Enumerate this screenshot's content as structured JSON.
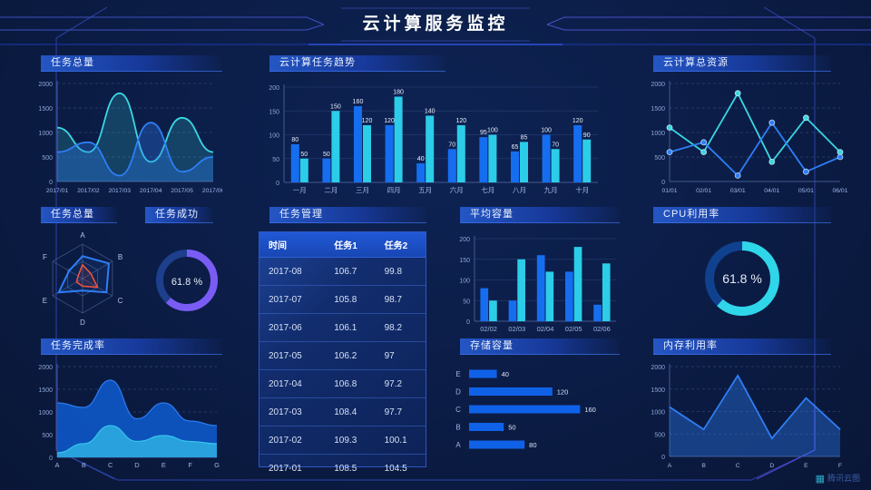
{
  "header": {
    "title": "云计算服务监控"
  },
  "watermark": {
    "label": "腾讯云图"
  },
  "panels": {
    "task_total_top": {
      "title": "任务总量"
    },
    "task_trend": {
      "title": "云计算任务趋势"
    },
    "cloud_resources": {
      "title": "云计算总资源"
    },
    "task_total_radar": {
      "title": "任务总量"
    },
    "task_success": {
      "title": "任务成功"
    },
    "task_manage": {
      "title": "任务管理"
    },
    "avg_capacity": {
      "title": "平均容量"
    },
    "cpu_usage": {
      "title": "CPU利用率"
    },
    "task_completion": {
      "title": "任务完成率"
    },
    "storage": {
      "title": "存储容量"
    },
    "memory_usage": {
      "title": "内存利用率"
    }
  },
  "table": {
    "headers": [
      "时间",
      "任务1",
      "任务2"
    ],
    "rows": [
      [
        "2017-08",
        "106.7",
        "99.8"
      ],
      [
        "2017-07",
        "105.8",
        "98.7"
      ],
      [
        "2017-06",
        "106.1",
        "98.2"
      ],
      [
        "2017-05",
        "106.2",
        "97"
      ],
      [
        "2017-04",
        "106.8",
        "97.2"
      ],
      [
        "2017-03",
        "108.4",
        "97.7"
      ],
      [
        "2017-02",
        "109.3",
        "100.1"
      ],
      [
        "2017-01",
        "108.5",
        "104.5"
      ]
    ]
  },
  "chart_data": [
    {
      "id": "task_total_top",
      "type": "area",
      "smooth": true,
      "grid": "dashed",
      "x": [
        "2017/01",
        "2017/02",
        "2017/03",
        "2017/04",
        "2017/05",
        "2017/06"
      ],
      "ylim": [
        0,
        2000
      ],
      "yticks": [
        0,
        500,
        1000,
        1500,
        2000
      ],
      "series": [
        {
          "name": "cyan",
          "color": "#3ad6e2",
          "fill_opacity": 0.2,
          "values": [
            1100,
            600,
            1800,
            400,
            1300,
            600
          ]
        },
        {
          "name": "blue",
          "color": "#2e7ef5",
          "fill_opacity": 0.32,
          "values": [
            600,
            800,
            120,
            1200,
            200,
            500
          ]
        }
      ]
    },
    {
      "id": "task_trend",
      "type": "bar",
      "value_labels": true,
      "grid": "solid",
      "categories": [
        "一月",
        "二月",
        "三月",
        "四月",
        "五月",
        "六月",
        "七月",
        "八月",
        "九月",
        "十月"
      ],
      "ylim": [
        0,
        200
      ],
      "yticks": [
        0,
        50,
        100,
        150,
        200
      ],
      "series": [
        {
          "name": "任务1",
          "color": "#156ef0",
          "values": [
            80,
            50,
            160,
            120,
            40,
            70,
            95,
            65,
            100,
            120
          ]
        },
        {
          "name": "任务2",
          "color": "#2bcde8",
          "values": [
            50,
            150,
            120,
            180,
            140,
            120,
            100,
            85,
            70,
            90
          ]
        }
      ]
    },
    {
      "id": "cloud_resources",
      "type": "line",
      "markers": true,
      "grid": "dashed",
      "x": [
        "01/01",
        "02/01",
        "03/01",
        "04/01",
        "05/01",
        "06/01"
      ],
      "ylim": [
        0,
        2000
      ],
      "yticks": [
        0,
        500,
        1000,
        1500,
        2000
      ],
      "series": [
        {
          "name": "cyan",
          "color": "#3ad6e2",
          "values": [
            1100,
            600,
            1800,
            400,
            1300,
            600
          ]
        },
        {
          "name": "blue",
          "color": "#2e7ef5",
          "values": [
            600,
            800,
            120,
            1200,
            200,
            500
          ]
        }
      ]
    },
    {
      "id": "task_total_radar",
      "type": "radar",
      "max": 100,
      "axes": [
        "A",
        "B",
        "C",
        "D",
        "E",
        "F"
      ],
      "series": [
        {
          "name": "blue",
          "color": "#2e7ef5",
          "values": [
            65,
            88,
            80,
            35,
            80,
            45
          ]
        },
        {
          "name": "red",
          "color": "#f25540",
          "values": [
            40,
            28,
            50,
            22,
            20,
            15
          ]
        }
      ]
    },
    {
      "id": "task_success",
      "type": "donut",
      "value": 61.8,
      "label": "61.8 %",
      "color": "#7a5cf5",
      "track": "#1d3f8c"
    },
    {
      "id": "avg_capacity",
      "type": "bar",
      "value_labels": false,
      "grid": "solid",
      "categories": [
        "02/02",
        "02/03",
        "02/04",
        "02/05",
        "02/06"
      ],
      "ylim": [
        0,
        200
      ],
      "yticks": [
        0,
        50,
        100,
        150,
        200
      ],
      "series": [
        {
          "name": "blue",
          "color": "#156ef0",
          "values": [
            80,
            50,
            160,
            120,
            40
          ]
        },
        {
          "name": "cyan",
          "color": "#2bcde8",
          "values": [
            50,
            150,
            120,
            180,
            140
          ]
        }
      ]
    },
    {
      "id": "cpu_usage",
      "type": "donut",
      "value": 61.8,
      "label": "61.8 %",
      "color": "#2fd5e8",
      "track": "#10418f"
    },
    {
      "id": "task_completion",
      "type": "layered_area",
      "smooth": true,
      "grid": "dashed",
      "x": [
        "A",
        "B",
        "C",
        "D",
        "E",
        "F",
        "G"
      ],
      "ylim": [
        0,
        2000
      ],
      "yticks": [
        0,
        500,
        1000,
        1500,
        2000
      ],
      "series": [
        {
          "name": "upper",
          "color": "#0e56c4",
          "edge": "#2d7bf0",
          "values": [
            1200,
            1100,
            1700,
            850,
            1200,
            800,
            700
          ]
        },
        {
          "name": "lower",
          "color": "#2aa8e0",
          "edge": "#35c4ee",
          "values": [
            100,
            300,
            700,
            350,
            480,
            350,
            300
          ]
        }
      ]
    },
    {
      "id": "storage",
      "type": "hbar",
      "color": "#0f62e8",
      "xmax": 170,
      "categories": [
        "E",
        "D",
        "C",
        "B",
        "A"
      ],
      "values": [
        40,
        120,
        160,
        50,
        80
      ]
    },
    {
      "id": "memory_usage",
      "type": "area",
      "smooth": false,
      "grid": "dashed",
      "x": [
        "A",
        "B",
        "C",
        "D",
        "E",
        "F"
      ],
      "ylim": [
        0,
        2000
      ],
      "yticks": [
        0,
        500,
        1000,
        1500,
        2000
      ],
      "series": [
        {
          "name": "blue",
          "color": "#2e7ef5",
          "fill_opacity": 0.38,
          "values": [
            1100,
            600,
            1800,
            400,
            1300,
            600
          ]
        }
      ]
    }
  ]
}
